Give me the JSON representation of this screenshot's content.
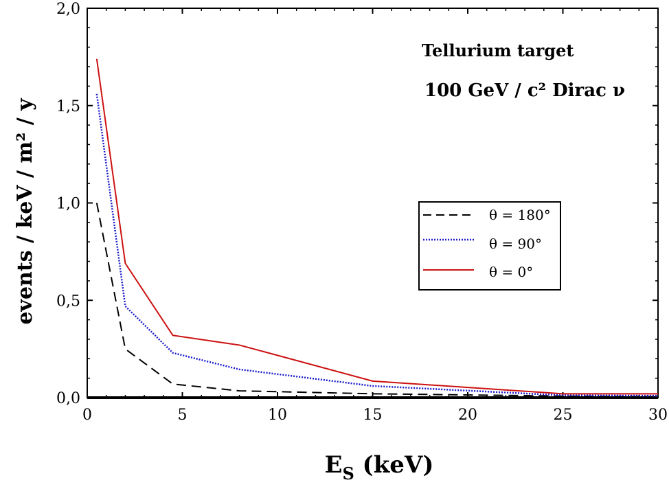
{
  "chart_data": {
    "type": "line",
    "xlabel": "E",
    "xlabel_sub": "S",
    "xlabel_unit": " (keV)",
    "ylabel": "events / keV / m² / y",
    "xlim": [
      0,
      30
    ],
    "ylim": [
      0,
      2.0
    ],
    "xticks": [
      0,
      5,
      10,
      15,
      20,
      25,
      30
    ],
    "xtick_labels": [
      "0",
      "5",
      "10",
      "15",
      "20",
      "25",
      "30"
    ],
    "yticks": [
      0,
      0.5,
      1.0,
      1.5,
      2.0
    ],
    "ytick_labels": [
      "0,0",
      "0,5",
      "1,0",
      "1,5",
      "2,0"
    ],
    "grid": false,
    "legend_position": "right-middle",
    "annotations": {
      "target": "Tellurium target",
      "line2": "100 GeV  /  c² Dirac ν"
    },
    "series": [
      {
        "name": "θ = 180°",
        "style": "dashed",
        "color": "#000000",
        "x": [
          0.5,
          2,
          4.5,
          8,
          15,
          25,
          30
        ],
        "values": [
          1.0,
          0.25,
          0.07,
          0.035,
          0.02,
          0.008,
          0.005
        ]
      },
      {
        "name": "θ = 90°",
        "style": "dotted",
        "color": "#1a1acc",
        "x": [
          0.5,
          2,
          4.5,
          8,
          15,
          25,
          30
        ],
        "values": [
          1.56,
          0.47,
          0.23,
          0.145,
          0.06,
          0.012,
          0.01
        ]
      },
      {
        "name": "θ = 0°",
        "style": "solid",
        "color": "#cc1111",
        "x": [
          0.5,
          2,
          4.5,
          8,
          15,
          25,
          30
        ],
        "values": [
          1.74,
          0.69,
          0.32,
          0.27,
          0.085,
          0.02,
          0.02
        ]
      }
    ]
  }
}
